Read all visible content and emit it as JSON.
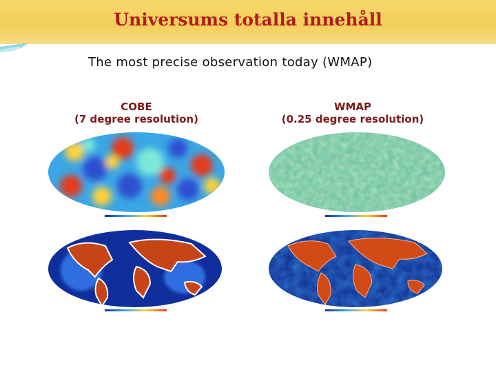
{
  "slide": {
    "title": "Universums totalla innehåll",
    "subtitle": "The most precise observation today (WMAP)"
  },
  "maps": [
    {
      "name": "COBE",
      "resolution": "(7 degree resolution)"
    },
    {
      "name": "WMAP",
      "resolution": "(0.25 degree resolution)"
    }
  ],
  "colors": {
    "title": "#b31b1b",
    "label": "#7a1a1a",
    "banner": "#f3cf5c"
  }
}
